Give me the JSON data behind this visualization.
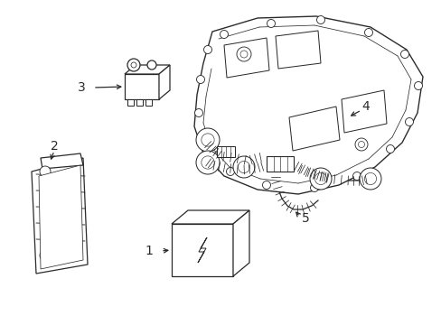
{
  "bg_color": "#ffffff",
  "line_color": "#2a2a2a",
  "lw": 0.9,
  "fig_w": 4.89,
  "fig_h": 3.6,
  "dpi": 100
}
